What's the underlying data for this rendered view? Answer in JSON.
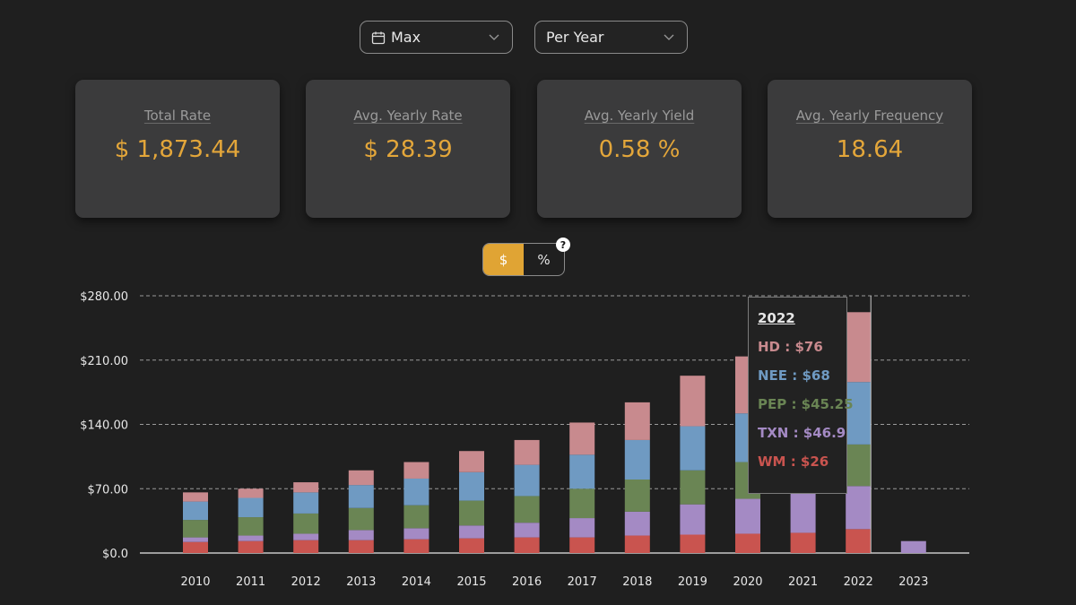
{
  "filters": {
    "range": {
      "value": "Max",
      "icon": "calendar-icon"
    },
    "period": {
      "value": "Per Year"
    }
  },
  "cards": [
    {
      "label": "Total Rate",
      "value": "$ 1,873.44"
    },
    {
      "label": "Avg. Yearly Rate",
      "value": "$ 28.39"
    },
    {
      "label": "Avg. Yearly Yield",
      "value": "0.58 %"
    },
    {
      "label": "Avg. Yearly Frequency",
      "value": "18.64"
    }
  ],
  "toggle": {
    "dollar": "$",
    "percent": "%",
    "active": "dollar",
    "help": "?"
  },
  "colors": {
    "accent": "#e0a434",
    "background": "#1f1f1f",
    "card": "#3b3b3c"
  },
  "chart_data": {
    "type": "bar",
    "stacked": true,
    "categories": [
      "2010",
      "2011",
      "2012",
      "2013",
      "2014",
      "2015",
      "2016",
      "2017",
      "2018",
      "2019",
      "2020",
      "2021",
      "2022",
      "2023"
    ],
    "y_ticks": [
      "$0.0",
      "$70.00",
      "$140.00",
      "$210.00",
      "$280.00"
    ],
    "ylim": [
      0,
      280
    ],
    "grid": true,
    "series": [
      {
        "name": "WM",
        "color": "#c9544f",
        "values": [
          12,
          13,
          14,
          14,
          15,
          16,
          17,
          17,
          19,
          20,
          21,
          22,
          26,
          0
        ]
      },
      {
        "name": "TXN",
        "color": "#a48ac4",
        "values": [
          5,
          6,
          7,
          11,
          12,
          14,
          16,
          21,
          26,
          33,
          38,
          43,
          46.9,
          13
        ]
      },
      {
        "name": "PEP",
        "color": "#6a8554",
        "values": [
          19,
          20,
          22,
          24,
          25,
          27,
          29,
          32,
          35,
          37,
          40,
          42,
          45.25,
          0
        ]
      },
      {
        "name": "NEE",
        "color": "#6f9ac2",
        "values": [
          20,
          21,
          23,
          25,
          29,
          31,
          34,
          37,
          43,
          48,
          53,
          58,
          68,
          0
        ]
      },
      {
        "name": "HD",
        "color": "#c88a8e",
        "values": [
          10,
          10,
          11,
          16,
          18,
          23,
          27,
          35,
          41,
          55,
          62,
          67,
          76,
          0
        ]
      }
    ],
    "highlight": "2022"
  },
  "tooltip": {
    "title": "2022",
    "rows": [
      {
        "label": "HD : $76",
        "color": "#c88a8e"
      },
      {
        "label": "NEE : $68",
        "color": "#6f9ac2"
      },
      {
        "label": "PEP : $45.25",
        "color": "#6a8554"
      },
      {
        "label": "TXN : $46.9",
        "color": "#a48ac4"
      },
      {
        "label": "WM : $26",
        "color": "#c9544f"
      }
    ]
  }
}
